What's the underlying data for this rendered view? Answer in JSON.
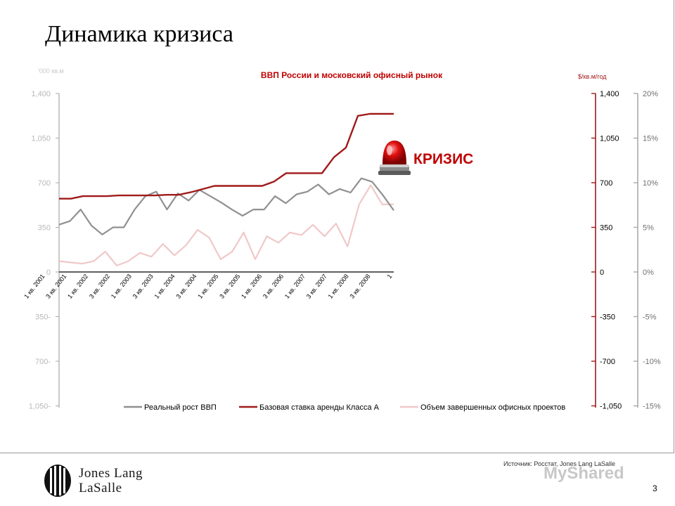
{
  "title": "Динамика кризиса",
  "source": "Источник: Росстат, Jones Lang LaSalle",
  "page_number": "3",
  "logo": {
    "line1": "Jones Lang",
    "line2": "LaSalle"
  },
  "watermark": "MyShared",
  "crisis_label": "КРИЗИС",
  "colors": {
    "gdp": "#909090",
    "rent": "#a01a1a",
    "completions": "#f0c8c8",
    "axis_gray": "#a8a8a8",
    "axis_red": "#a01a1a",
    "title_red": "#c00000"
  },
  "chart_data": {
    "type": "line",
    "title": "ВВП России и московский офисный рынок",
    "left_axis_unit": "'000 кв.м",
    "rent_axis_unit": "$/кв.м/год",
    "left_ticks": [
      "1,400",
      "1,050",
      "700",
      "350",
      "0",
      "350-",
      "700-",
      "1,050-"
    ],
    "rent_ticks": [
      "1,400",
      "1,050",
      "700",
      "350",
      "0",
      "-350",
      "-700",
      "-1,050"
    ],
    "pct_ticks": [
      "20%",
      "15%",
      "10%",
      "5%",
      "0%",
      "-5%",
      "-10%",
      "-15%"
    ],
    "ylim": [
      -1050,
      1400
    ],
    "pct_ylim": [
      -15,
      20
    ],
    "x_labels": [
      "1 кв. 2001",
      "3 кв. 2001",
      "1 кв. 2002",
      "3 кв. 2002",
      "1 кв. 2003",
      "3 кв. 2003",
      "1 кв. 2004",
      "3 кв. 2004",
      "1 кв. 2005",
      "3 кв. 2005",
      "1 кв. 2006",
      "3 кв. 2006",
      "1 кв. 2007",
      "3 кв. 2007",
      "1 кв. 2008",
      "3 кв. 2008",
      "1"
    ],
    "series": [
      {
        "name": "Реальный рост ВВП",
        "axis": "pct",
        "values": [
          5.3,
          5.7,
          7.0,
          5.2,
          4.2,
          5.0,
          5.0,
          7.0,
          8.5,
          9.0,
          7.0,
          8.8,
          8.0,
          9.2,
          8.5,
          7.8,
          7.0,
          6.3,
          7.0,
          7.0,
          8.5,
          7.7,
          8.7,
          9.0,
          9.8,
          8.7,
          9.3,
          8.9,
          10.5,
          10.1,
          8.6,
          6.9
        ]
      },
      {
        "name": "Базовая ставка аренды Класса А",
        "axis": "rent",
        "values": [
          575,
          575,
          595,
          595,
          595,
          600,
          600,
          600,
          600,
          605,
          605,
          625,
          650,
          675,
          675,
          675,
          675,
          675,
          710,
          775,
          775,
          775,
          775,
          900,
          975,
          1225,
          1240,
          1240,
          1240
        ]
      },
      {
        "name": "Объем завершенных офисных проектов",
        "axis": "left",
        "values": [
          85,
          75,
          65,
          85,
          160,
          50,
          85,
          150,
          120,
          220,
          130,
          210,
          330,
          270,
          100,
          160,
          310,
          100,
          280,
          230,
          310,
          290,
          370,
          280,
          380,
          200,
          530,
          680,
          530,
          530
        ]
      }
    ],
    "legend_position": "bottom"
  }
}
